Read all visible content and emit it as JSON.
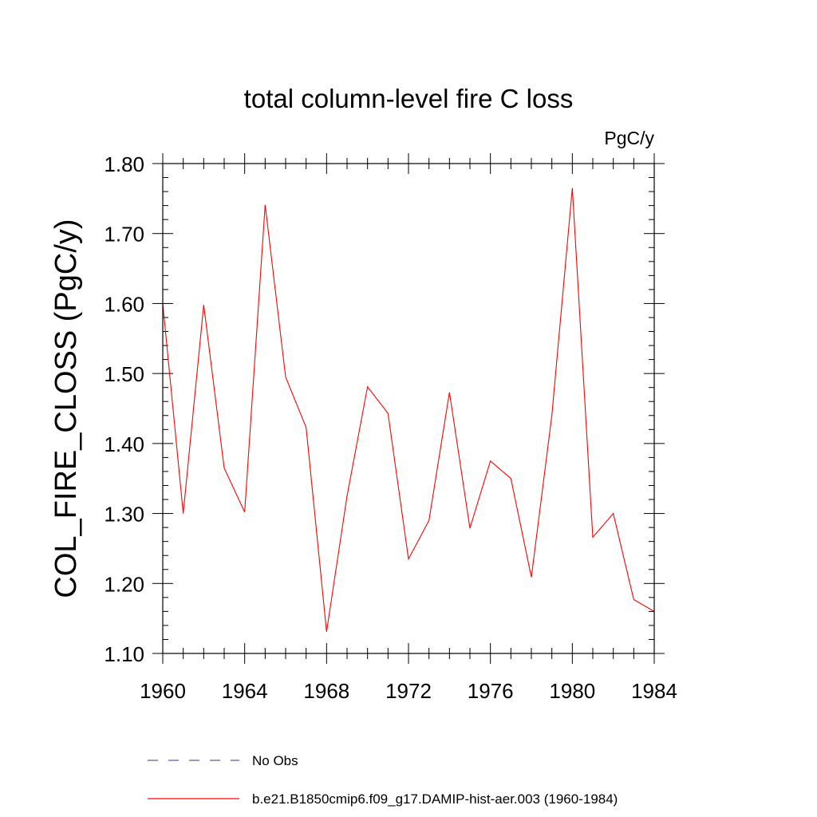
{
  "chart_data": {
    "type": "line",
    "title": "total column-level fire C loss",
    "units_label": "PgC/y",
    "ylabel": "COL_FIRE_CLOSS  (PgC/y)",
    "xlabel": "",
    "xlim": [
      1960,
      1984
    ],
    "ylim": [
      1.1,
      1.8
    ],
    "x_ticks": [
      1960,
      1964,
      1968,
      1972,
      1976,
      1980,
      1984
    ],
    "x_tick_labels": [
      "1960",
      "1964",
      "1968",
      "1972",
      "1976",
      "1980",
      "1984"
    ],
    "y_ticks": [
      1.1,
      1.2,
      1.3,
      1.4,
      1.5,
      1.6,
      1.7,
      1.8
    ],
    "y_tick_labels": [
      "1.10",
      "1.20",
      "1.30",
      "1.40",
      "1.50",
      "1.60",
      "1.70",
      "1.80"
    ],
    "grid": false,
    "legend_position": "bottom",
    "x": [
      1960,
      1961,
      1962,
      1963,
      1964,
      1965,
      1966,
      1967,
      1968,
      1969,
      1970,
      1971,
      1972,
      1973,
      1974,
      1975,
      1976,
      1977,
      1978,
      1979,
      1980,
      1981,
      1982,
      1983,
      1984
    ],
    "series": [
      {
        "name": "b.e21.B1850cmip6.f09_g17.DAMIP-hist-aer.003 (1960-1984)",
        "color": "#ff0000",
        "style": "solid",
        "values": [
          1.6,
          1.3,
          1.598,
          1.365,
          1.302,
          1.741,
          1.495,
          1.423,
          1.131,
          1.325,
          1.481,
          1.443,
          1.235,
          1.29,
          1.473,
          1.279,
          1.375,
          1.35,
          1.209,
          1.44,
          1.765,
          1.266,
          1.3,
          1.177,
          1.16
        ]
      }
    ],
    "legend": [
      {
        "label": "No Obs",
        "color": "#5a5aa8",
        "style": "dashed"
      },
      {
        "label": "b.e21.B1850cmip6.f09_g17.DAMIP-hist-aer.003 (1960-1984)",
        "color": "#ff0000",
        "style": "solid"
      }
    ]
  }
}
